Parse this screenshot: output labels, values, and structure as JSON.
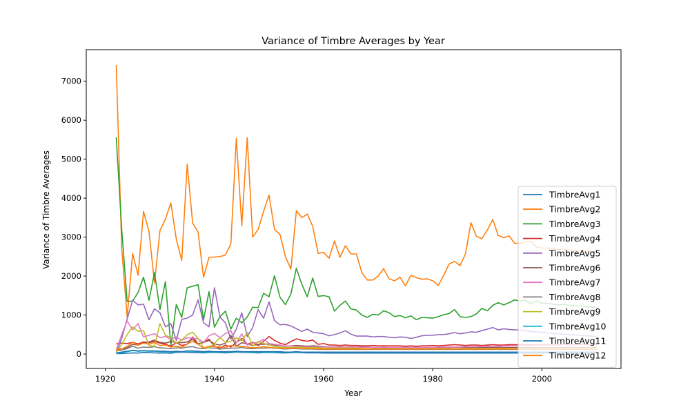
{
  "chart_data": {
    "type": "line",
    "title": "Variance of Timbre Averages by Year",
    "xlabel": "Year",
    "ylabel": "Variance of Timbre Averages",
    "xlim": [
      1916.5,
      2014.5
    ],
    "ylim": [
      -370,
      7810
    ],
    "xticks": [
      1920,
      1940,
      1960,
      1980,
      2000
    ],
    "yticks": [
      0,
      1000,
      2000,
      3000,
      4000,
      5000,
      6000,
      7000
    ],
    "grid": false,
    "legend_position": "right",
    "x": [
      1922,
      1923,
      1924,
      1925,
      1926,
      1927,
      1928,
      1929,
      1930,
      1931,
      1932,
      1933,
      1934,
      1935,
      1936,
      1937,
      1938,
      1939,
      1940,
      1941,
      1942,
      1943,
      1944,
      1945,
      1946,
      1947,
      1948,
      1949,
      1950,
      1951,
      1952,
      1953,
      1954,
      1955,
      1956,
      1957,
      1958,
      1959,
      1960,
      1961,
      1962,
      1963,
      1964,
      1965,
      1966,
      1967,
      1968,
      1969,
      1970,
      1971,
      1972,
      1973,
      1974,
      1975,
      1976,
      1977,
      1978,
      1979,
      1980,
      1981,
      1982,
      1983,
      1984,
      1985,
      1986,
      1987,
      1988,
      1989,
      1990,
      1991,
      1992,
      1993,
      1994,
      1995,
      1996,
      1997,
      1998,
      1999,
      2000,
      2001,
      2002,
      2003,
      2004,
      2005,
      2006,
      2007,
      2008,
      2009,
      2010
    ],
    "series": [
      {
        "name": "TimbreAvg1",
        "color": "#1f77b4",
        "values": [
          10,
          15,
          20,
          30,
          25,
          40,
          35,
          30,
          25,
          30,
          20,
          40,
          50,
          45,
          40,
          35,
          30,
          40,
          45,
          35,
          30,
          40,
          50,
          45,
          40,
          35,
          30,
          35,
          40,
          35,
          30,
          30,
          35,
          40,
          35,
          30,
          30,
          30,
          25,
          25,
          25,
          25,
          25,
          25,
          25,
          25,
          25,
          25,
          25,
          25,
          25,
          25,
          25,
          25,
          25,
          25,
          25,
          25,
          25,
          25,
          25,
          25,
          25,
          25,
          25,
          25,
          25,
          25,
          25,
          25,
          25,
          25,
          25,
          25,
          25,
          25,
          25,
          25,
          25,
          25,
          25,
          25,
          25,
          25,
          25,
          25,
          25,
          25,
          25
        ]
      },
      {
        "name": "TimbreAvg2",
        "color": "#ff7f0e",
        "values": [
          7420,
          2700,
          950,
          2580,
          2020,
          3660,
          3150,
          1820,
          3170,
          3460,
          3880,
          2950,
          2400,
          4870,
          3360,
          3130,
          1970,
          2480,
          2490,
          2500,
          2540,
          2830,
          5540,
          3290,
          5550,
          3000,
          3200,
          3660,
          4080,
          3200,
          3070,
          2500,
          2180,
          3680,
          3500,
          3590,
          3280,
          2580,
          2610,
          2460,
          2900,
          2480,
          2780,
          2570,
          2570,
          2090,
          1900,
          1900,
          2000,
          2190,
          1930,
          1880,
          1970,
          1750,
          2020,
          1960,
          1920,
          1930,
          1880,
          1760,
          2020,
          2310,
          2380,
          2270,
          2570,
          3370,
          3020,
          2960,
          3180,
          3450,
          3040,
          2990,
          3030,
          2840,
          2840,
          2880,
          2890,
          2750,
          2720,
          2720,
          2700,
          2680,
          2690,
          2670,
          2660,
          2640,
          2650,
          2630,
          2620
        ]
      },
      {
        "name": "TimbreAvg3",
        "color": "#2ca02c",
        "values": [
          5560,
          3200,
          1350,
          1360,
          1580,
          1970,
          1380,
          2090,
          1140,
          1860,
          220,
          1270,
          940,
          1700,
          1740,
          1780,
          880,
          1600,
          690,
          960,
          1100,
          640,
          920,
          800,
          950,
          1200,
          1190,
          1560,
          1470,
          2010,
          1460,
          1270,
          1540,
          2200,
          1790,
          1470,
          1950,
          1480,
          1500,
          1470,
          1100,
          1250,
          1360,
          1160,
          1130,
          1000,
          940,
          1020,
          1000,
          1110,
          1060,
          960,
          990,
          930,
          980,
          880,
          940,
          930,
          920,
          960,
          1010,
          1040,
          1140,
          960,
          940,
          960,
          1030,
          1170,
          1110,
          1250,
          1320,
          1260,
          1320,
          1390,
          1360,
          1380,
          1280,
          1370,
          1300,
          1300,
          1280,
          1260,
          1280,
          1250,
          1240,
          1230,
          1220,
          1210,
          1200
        ]
      },
      {
        "name": "TimbreAvg4",
        "color": "#d62728",
        "values": [
          260,
          280,
          270,
          300,
          260,
          310,
          290,
          330,
          280,
          250,
          200,
          290,
          220,
          250,
          440,
          260,
          300,
          380,
          200,
          150,
          230,
          180,
          300,
          400,
          250,
          300,
          220,
          330,
          450,
          350,
          280,
          240,
          320,
          390,
          350,
          330,
          360,
          250,
          270,
          230,
          230,
          220,
          230,
          220,
          220,
          210,
          210,
          220,
          210,
          210,
          210,
          210,
          210,
          200,
          210,
          200,
          210,
          210,
          220,
          210,
          220,
          230,
          240,
          230,
          220,
          230,
          230,
          220,
          230,
          240,
          230,
          230,
          240,
          240,
          240,
          240,
          240,
          240,
          240,
          240,
          240,
          240,
          240,
          240,
          240,
          240,
          240,
          240,
          240
        ]
      },
      {
        "name": "TimbreAvg5",
        "color": "#9467bd",
        "values": [
          50,
          400,
          900,
          1380,
          1260,
          1280,
          880,
          1160,
          1060,
          700,
          780,
          350,
          890,
          920,
          1000,
          1390,
          800,
          700,
          1700,
          950,
          800,
          380,
          640,
          1060,
          450,
          680,
          1140,
          920,
          1340,
          860,
          750,
          760,
          720,
          650,
          580,
          640,
          560,
          540,
          520,
          470,
          500,
          540,
          600,
          510,
          460,
          460,
          460,
          440,
          450,
          450,
          430,
          420,
          440,
          430,
          400,
          430,
          470,
          480,
          480,
          500,
          500,
          520,
          550,
          520,
          540,
          570,
          560,
          600,
          640,
          680,
          620,
          650,
          630,
          620,
          620,
          600,
          580,
          570,
          560,
          540,
          530,
          520,
          510,
          500,
          490,
          480,
          470,
          460,
          450
        ]
      },
      {
        "name": "TimbreAvg6",
        "color": "#8c564b",
        "values": [
          130,
          140,
          160,
          250,
          230,
          280,
          310,
          360,
          300,
          280,
          320,
          300,
          290,
          310,
          380,
          260,
          300,
          350,
          260,
          230,
          280,
          480,
          200,
          290,
          260,
          220,
          250,
          250,
          260,
          230,
          220,
          200,
          210,
          220,
          210,
          200,
          210,
          200,
          190,
          180,
          180,
          180,
          180,
          180,
          180,
          180,
          180,
          170,
          170,
          170,
          170,
          170,
          170,
          170,
          170,
          170,
          170,
          170,
          170,
          170,
          170,
          170,
          180,
          170,
          170,
          170,
          170,
          170,
          170,
          170,
          170,
          170,
          170,
          170,
          170,
          170,
          170,
          170,
          170,
          170,
          170,
          170,
          170,
          170,
          170,
          170,
          170,
          170,
          170
        ]
      },
      {
        "name": "TimbreAvg7",
        "color": "#e377c2",
        "values": [
          100,
          500,
          850,
          620,
          780,
          440,
          480,
          520,
          420,
          450,
          380,
          440,
          350,
          420,
          410,
          390,
          300,
          470,
          530,
          420,
          530,
          600,
          280,
          520,
          230,
          280,
          300,
          380,
          270,
          250,
          230,
          200,
          210,
          200,
          190,
          180,
          190,
          180,
          180,
          180,
          180,
          170,
          180,
          180,
          180,
          170,
          180,
          170,
          170,
          180,
          170,
          170,
          170,
          170,
          170,
          170,
          170,
          170,
          170,
          180,
          180,
          180,
          180,
          180,
          190,
          190,
          190,
          200,
          200,
          200,
          200,
          210,
          210,
          210,
          220,
          220,
          220,
          230,
          230,
          230,
          230,
          240,
          240,
          240,
          240,
          240,
          250,
          250,
          250
        ]
      },
      {
        "name": "TimbreAvg8",
        "color": "#7f7f7f",
        "values": [
          80,
          100,
          140,
          200,
          150,
          180,
          170,
          190,
          160,
          150,
          140,
          160,
          150,
          180,
          190,
          150,
          140,
          160,
          150,
          130,
          140,
          150,
          150,
          170,
          140,
          140,
          150,
          150,
          160,
          150,
          140,
          130,
          140,
          140,
          130,
          130,
          130,
          120,
          120,
          120,
          120,
          120,
          120,
          120,
          120,
          120,
          120,
          120,
          120,
          120,
          120,
          120,
          120,
          120,
          120,
          120,
          120,
          120,
          120,
          120,
          120,
          120,
          120,
          120,
          120,
          120,
          120,
          120,
          120,
          120,
          120,
          120,
          120,
          120,
          120,
          120,
          120,
          120,
          120,
          120,
          120,
          120,
          120,
          120,
          120,
          120,
          120,
          120,
          120
        ]
      },
      {
        "name": "TimbreAvg9",
        "color": "#bcbd22",
        "values": [
          60,
          250,
          500,
          700,
          580,
          600,
          220,
          200,
          780,
          480,
          420,
          280,
          360,
          500,
          560,
          400,
          160,
          160,
          280,
          420,
          300,
          330,
          420,
          340,
          550,
          200,
          320,
          280,
          220,
          200,
          180,
          170,
          170,
          180,
          170,
          160,
          170,
          160,
          150,
          150,
          150,
          150,
          150,
          150,
          150,
          140,
          140,
          140,
          140,
          140,
          140,
          140,
          140,
          140,
          140,
          140,
          140,
          140,
          140,
          140,
          140,
          140,
          140,
          140,
          140,
          140,
          140,
          140,
          140,
          140,
          140,
          140,
          140,
          140,
          140,
          140,
          140,
          140,
          140,
          140,
          140,
          140,
          140,
          140,
          140,
          140,
          140,
          140,
          140
        ]
      },
      {
        "name": "TimbreAvg10",
        "color": "#17becf",
        "values": [
          20,
          40,
          60,
          90,
          70,
          80,
          70,
          70,
          60,
          60,
          50,
          60,
          60,
          70,
          70,
          60,
          50,
          60,
          60,
          50,
          50,
          60,
          60,
          60,
          50,
          50,
          50,
          50,
          50,
          50,
          50,
          50,
          50,
          50,
          50,
          50,
          50,
          50,
          50,
          50,
          50,
          50,
          50,
          50,
          50,
          50,
          50,
          50,
          50,
          50,
          50,
          50,
          50,
          50,
          50,
          50,
          50,
          50,
          50,
          50,
          50,
          50,
          50,
          50,
          50,
          50,
          50,
          50,
          50,
          50,
          50,
          50,
          50,
          50,
          50,
          50,
          50,
          50,
          50,
          50,
          50,
          50,
          50,
          50,
          50,
          50,
          50,
          50,
          50
        ]
      },
      {
        "name": "TimbreAvg11",
        "color": "#1f77b4",
        "values": [
          30,
          50,
          70,
          100,
          80,
          90,
          80,
          80,
          70,
          70,
          60,
          70,
          60,
          80,
          80,
          70,
          60,
          70,
          60,
          60,
          60,
          60,
          70,
          60,
          60,
          60,
          60,
          60,
          60,
          60,
          60,
          50,
          50,
          60,
          50,
          50,
          50,
          50,
          50,
          50,
          50,
          50,
          50,
          50,
          50,
          50,
          50,
          50,
          50,
          50,
          50,
          50,
          50,
          50,
          50,
          50,
          50,
          50,
          50,
          50,
          50,
          50,
          50,
          50,
          50,
          50,
          50,
          50,
          50,
          50,
          50,
          50,
          50,
          50,
          50,
          50,
          50,
          50,
          50,
          50,
          50,
          50,
          50,
          50,
          50,
          50,
          50,
          50,
          50
        ]
      },
      {
        "name": "TimbreAvg12",
        "color": "#ff7f0e",
        "values": [
          100,
          130,
          200,
          300,
          230,
          280,
          250,
          300,
          220,
          230,
          180,
          200,
          170,
          260,
          330,
          250,
          150,
          200,
          190,
          180,
          170,
          220,
          200,
          200,
          180,
          160,
          170,
          190,
          170,
          160,
          150,
          140,
          150,
          150,
          140,
          140,
          140,
          130,
          130,
          130,
          130,
          130,
          130,
          130,
          130,
          130,
          130,
          130,
          130,
          130,
          130,
          130,
          130,
          130,
          130,
          130,
          130,
          130,
          130,
          130,
          130,
          130,
          130,
          130,
          130,
          130,
          130,
          130,
          130,
          130,
          130,
          130,
          130,
          130,
          130,
          130,
          130,
          130,
          130,
          130,
          130,
          130,
          130,
          130,
          130,
          130,
          130,
          130,
          130
        ]
      }
    ]
  }
}
